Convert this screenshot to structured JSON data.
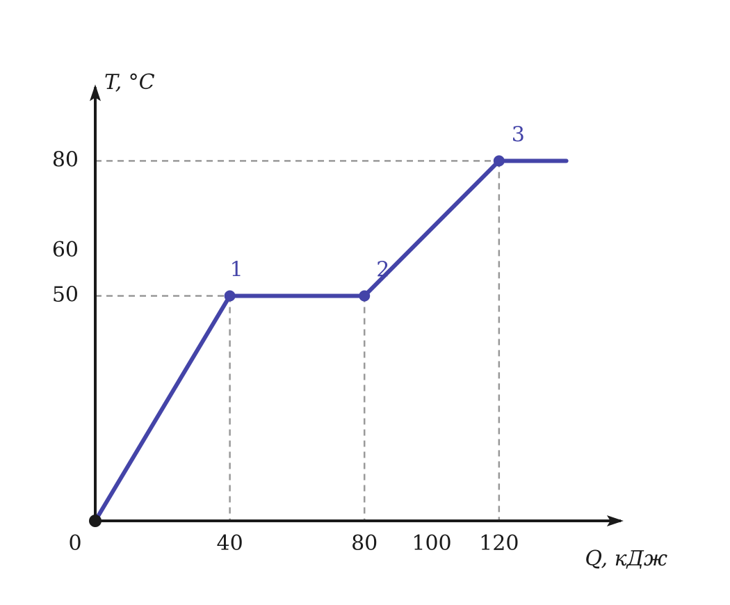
{
  "chart_data": {
    "type": "line",
    "x_label": "Q, кДж",
    "y_label": "T, °C",
    "x": [
      0,
      40,
      80,
      120,
      140
    ],
    "series": [
      {
        "color": "#4444a8",
        "values": [
          0,
          50,
          50,
          80,
          80
        ]
      }
    ],
    "xlim": [
      0,
      157
    ],
    "ylim": [
      0,
      97
    ],
    "xticks": [
      0,
      40,
      80,
      100,
      120
    ],
    "yticks": [
      50,
      60,
      80
    ],
    "annotations": [
      {
        "text": "1",
        "x": 40,
        "y": 50
      },
      {
        "text": "2",
        "x": 80,
        "y": 50
      },
      {
        "text": "3",
        "x": 120,
        "y": 80
      }
    ]
  }
}
